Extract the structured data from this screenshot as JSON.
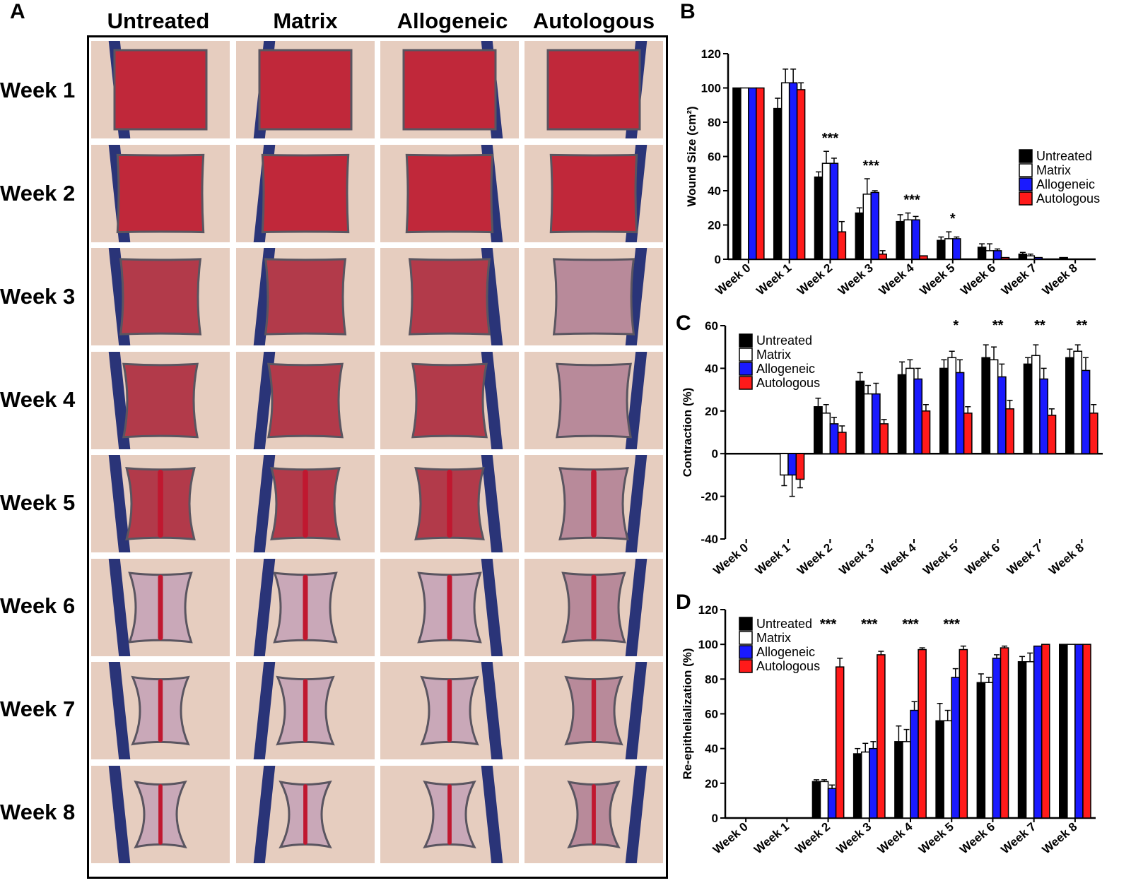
{
  "figure": {
    "panel_a": {
      "letter": "A",
      "columns": [
        "Untreated",
        "Matrix",
        "Allogeneic",
        "Autologous"
      ],
      "rows": [
        "Week 1",
        "Week 2",
        "Week 3",
        "Week 4",
        "Week 5",
        "Week 6",
        "Week 7",
        "Week 8"
      ]
    }
  },
  "colors": {
    "Untreated": "#000000",
    "Matrix": "#ffffff",
    "Allogeneic": "#1a1aff",
    "Autologous": "#ff1a1a"
  },
  "chart_data": [
    {
      "panel": "B",
      "type": "bar",
      "categories": [
        "Week 0",
        "Week 1",
        "Week 2",
        "Week 3",
        "Week 4",
        "Week 5",
        "Week 6",
        "Week 7",
        "Week 8"
      ],
      "series": [
        {
          "name": "Untreated",
          "values": [
            100,
            88,
            48,
            27,
            22,
            11,
            7,
            3,
            1
          ],
          "errors": [
            0,
            6,
            3,
            3,
            4,
            2,
            2,
            1,
            0
          ]
        },
        {
          "name": "Matrix",
          "values": [
            100,
            103,
            56,
            38,
            23,
            12,
            5,
            2,
            0
          ],
          "errors": [
            0,
            8,
            7,
            9,
            4,
            4,
            4,
            1,
            0
          ]
        },
        {
          "name": "Allogeneic",
          "values": [
            100,
            103,
            56,
            39,
            23,
            12,
            5,
            1,
            0
          ],
          "errors": [
            0,
            8,
            3,
            1,
            2,
            1,
            1,
            0,
            0
          ]
        },
        {
          "name": "Autologous",
          "values": [
            100,
            99,
            16,
            3,
            2,
            0,
            1,
            0,
            0
          ],
          "errors": [
            0,
            4,
            6,
            2,
            0,
            0,
            0,
            0,
            0
          ]
        }
      ],
      "annotations": [
        {
          "category": "Week 2",
          "text": "***"
        },
        {
          "category": "Week 3",
          "text": "***"
        },
        {
          "category": "Week 4",
          "text": "***"
        },
        {
          "category": "Week 5",
          "text": "*"
        }
      ],
      "ylabel": "Wound Size (cm²)",
      "ylim": [
        0,
        120
      ],
      "yticks": [
        0,
        20,
        40,
        60,
        80,
        100,
        120
      ],
      "legend": "right"
    },
    {
      "panel": "C",
      "type": "bar",
      "categories": [
        "Week 0",
        "Week 1",
        "Week 2",
        "Week 3",
        "Week 4",
        "Week 5",
        "Week 6",
        "Week 7",
        "Week 8"
      ],
      "series": [
        {
          "name": "Untreated",
          "values": [
            0,
            0,
            22,
            34,
            37,
            40,
            45,
            42,
            45
          ],
          "errors": [
            0,
            6,
            4,
            4,
            6,
            4,
            6,
            3,
            4
          ]
        },
        {
          "name": "Matrix",
          "values": [
            0,
            -10,
            19,
            28,
            40,
            45,
            44,
            46,
            48
          ],
          "errors": [
            0,
            5,
            4,
            4,
            4,
            3,
            6,
            5,
            3
          ]
        },
        {
          "name": "Allogeneic",
          "values": [
            0,
            -10,
            14,
            28,
            35,
            38,
            36,
            35,
            39
          ],
          "errors": [
            0,
            10,
            3,
            5,
            5,
            6,
            6,
            5,
            6
          ]
        },
        {
          "name": "Autologous",
          "values": [
            0,
            -12,
            10,
            14,
            20,
            19,
            21,
            18,
            19
          ],
          "errors": [
            0,
            4,
            3,
            2,
            3,
            3,
            4,
            3,
            4
          ]
        }
      ],
      "annotations": [
        {
          "category": "Week 5",
          "text": "*"
        },
        {
          "category": "Week 6",
          "text": "**"
        },
        {
          "category": "Week 7",
          "text": "**"
        },
        {
          "category": "Week 8",
          "text": "**"
        }
      ],
      "ylabel": "Contraction (%)",
      "ylim": [
        -40,
        60
      ],
      "yticks": [
        -40,
        -20,
        0,
        20,
        40,
        60
      ],
      "legend": "top-left"
    },
    {
      "panel": "D",
      "type": "bar",
      "categories": [
        "Week 0",
        "Week 1",
        "Week 2",
        "Week 3",
        "Week 4",
        "Week 5",
        "Week 6",
        "Week 7",
        "Week 8"
      ],
      "series": [
        {
          "name": "Untreated",
          "values": [
            0,
            0,
            21,
            37,
            44,
            56,
            78,
            90,
            100
          ],
          "errors": [
            0,
            0,
            1,
            3,
            9,
            10,
            5,
            3,
            0
          ]
        },
        {
          "name": "Matrix",
          "values": [
            0,
            0,
            21,
            38,
            44,
            56,
            78,
            90,
            100
          ],
          "errors": [
            0,
            0,
            1,
            5,
            7,
            6,
            3,
            5,
            0
          ]
        },
        {
          "name": "Allogeneic",
          "values": [
            0,
            0,
            17,
            40,
            62,
            81,
            92,
            99,
            100
          ],
          "errors": [
            0,
            0,
            2,
            4,
            5,
            5,
            2,
            0,
            0
          ]
        },
        {
          "name": "Autologous",
          "values": [
            0,
            0,
            87,
            94,
            97,
            97,
            98,
            100,
            100
          ],
          "errors": [
            0,
            0,
            5,
            2,
            1,
            2,
            1,
            0,
            0
          ]
        }
      ],
      "annotations": [
        {
          "category": "Week 2",
          "text": "***"
        },
        {
          "category": "Week 3",
          "text": "***"
        },
        {
          "category": "Week 4",
          "text": "***"
        },
        {
          "category": "Week 5",
          "text": "***"
        }
      ],
      "ylabel": "Re-epithelialization (%)",
      "ylim": [
        0,
        120
      ],
      "yticks": [
        0,
        20,
        40,
        60,
        80,
        100,
        120
      ],
      "legend": "top-left"
    }
  ]
}
